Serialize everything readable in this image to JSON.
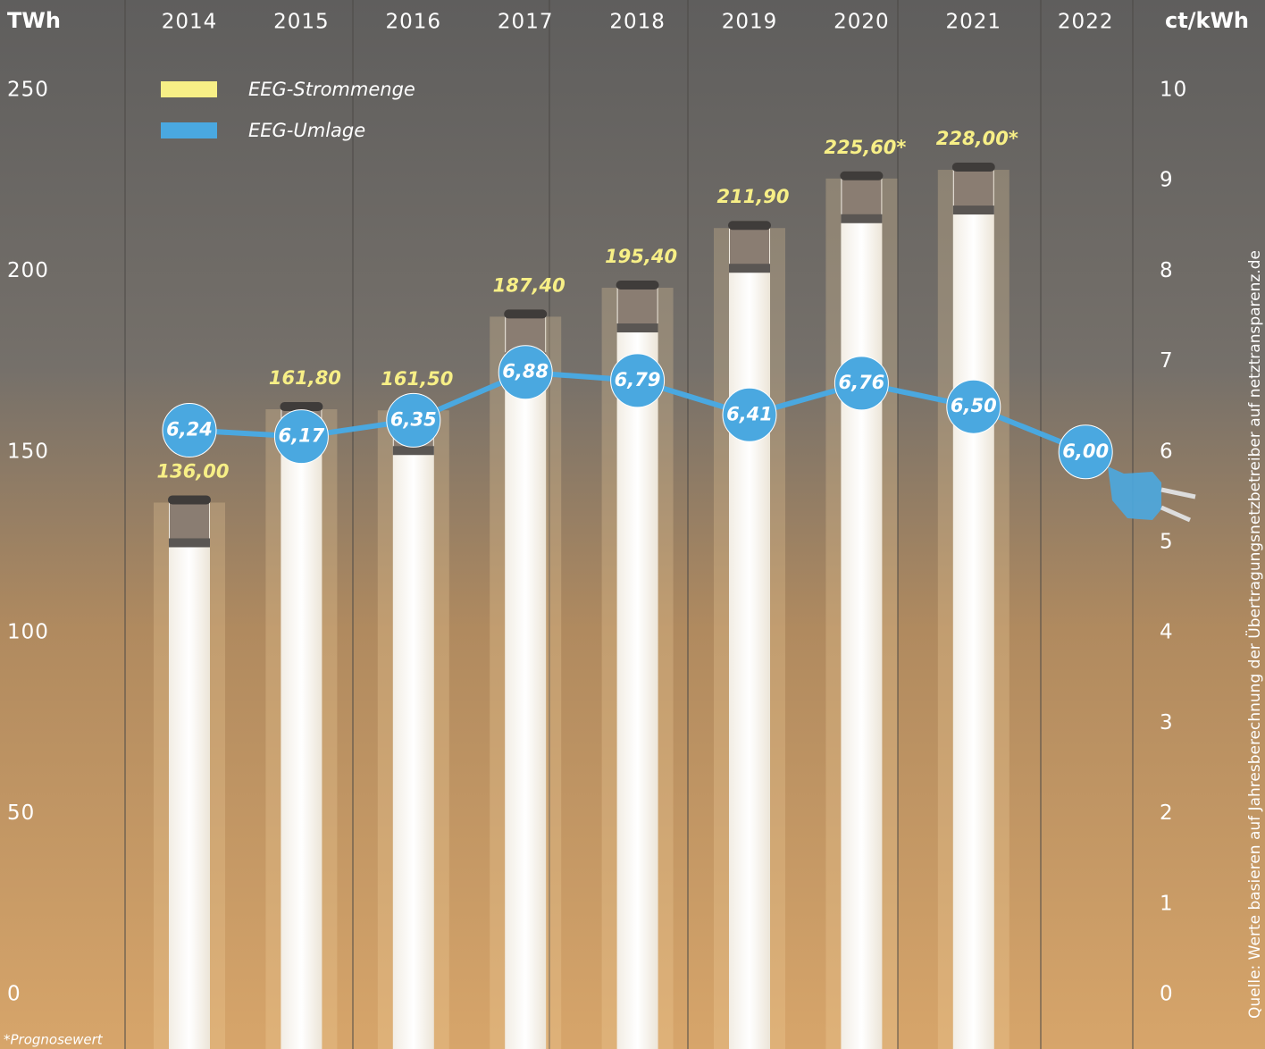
{
  "chart_data": {
    "type": "bar",
    "y_label": "TWh",
    "y2_label": "ct/kWh",
    "categories": [
      "2014",
      "2015",
      "2016",
      "2017",
      "2018",
      "2019",
      "2020",
      "2021",
      "2022"
    ],
    "series": [
      {
        "name": "EEG-Strommenge",
        "type": "bar",
        "axis": "y",
        "color": "#f7ef86",
        "values": [
          136.0,
          161.8,
          161.5,
          187.4,
          195.4,
          211.9,
          225.6,
          228.0,
          null
        ],
        "value_labels": [
          "136,00",
          "161,80",
          "161,50",
          "187,40",
          "195,40",
          "211,90",
          "225,60*",
          "228,00*",
          null
        ]
      },
      {
        "name": "EEG-Umlage",
        "type": "line",
        "axis": "y2",
        "color": "#4aa8e0",
        "values": [
          6.24,
          6.17,
          6.35,
          6.88,
          6.79,
          6.41,
          6.76,
          6.5,
          6.0
        ],
        "value_labels": [
          "6,24",
          "6,17",
          "6,35",
          "6,88",
          "6,79",
          "6,41",
          "6,76",
          "6,50",
          "6,00"
        ]
      }
    ],
    "ylim": [
      0,
      250
    ],
    "yticks": [
      0,
      50,
      100,
      150,
      200,
      250
    ],
    "y2lim": [
      0,
      10
    ],
    "y2ticks": [
      0,
      1,
      2,
      3,
      4,
      5,
      6,
      7,
      8,
      9,
      10
    ],
    "footnote": "*Prognosewert",
    "source": "Quelle: Werte basieren auf Jahresberechnung der Übertragungsnetzbetreiber auf netztransparenz.de"
  }
}
